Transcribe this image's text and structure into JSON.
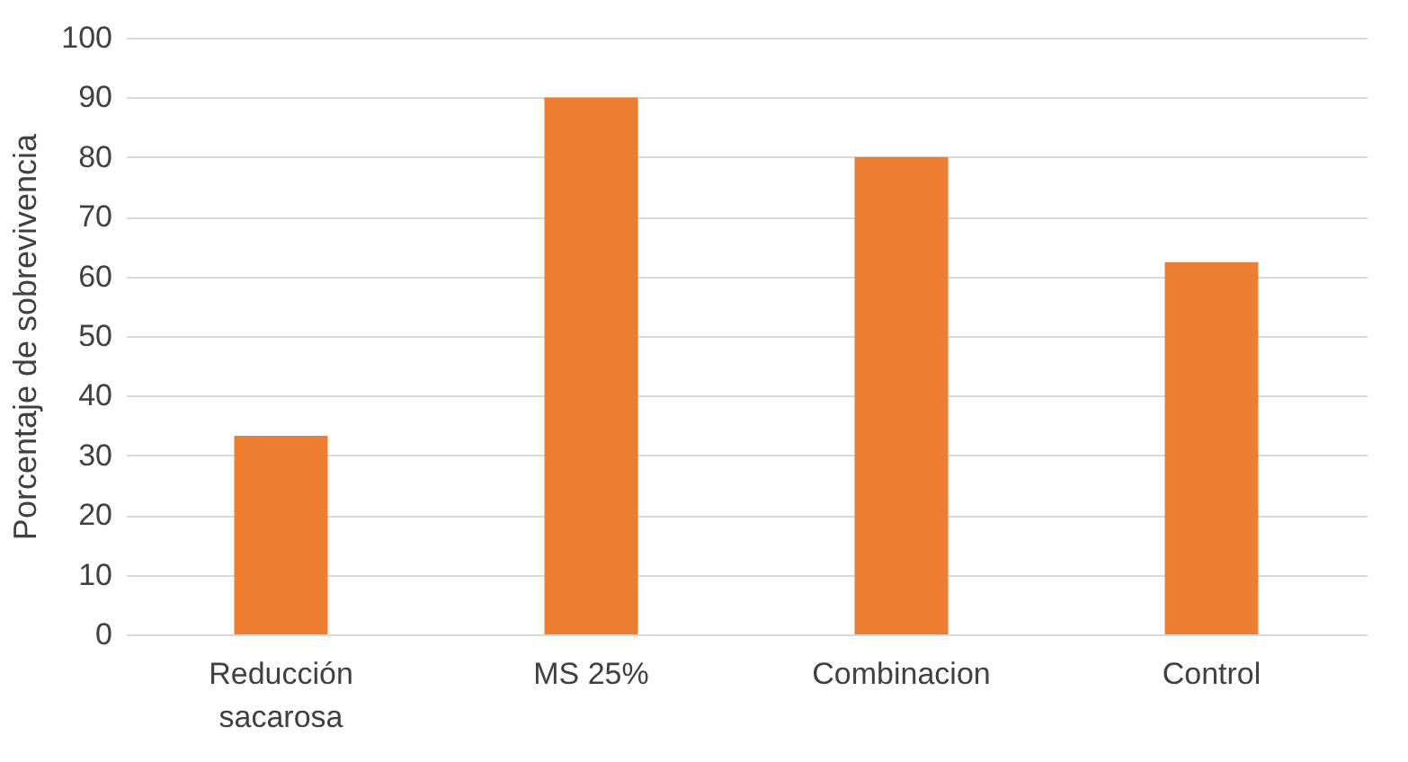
{
  "chart_data": {
    "type": "bar",
    "ylabel": "Porcentaje de sobrevivencia",
    "categories": [
      "Reducción sacarosa",
      "MS 25%",
      "Combinacion",
      "Control"
    ],
    "values": [
      33.3,
      90,
      80,
      62.4
    ],
    "color": "#ed7d31",
    "ylim": [
      0,
      100
    ],
    "yticks": [
      0,
      10,
      20,
      30,
      40,
      50,
      60,
      70,
      80,
      90,
      100
    ],
    "grid": "y"
  }
}
